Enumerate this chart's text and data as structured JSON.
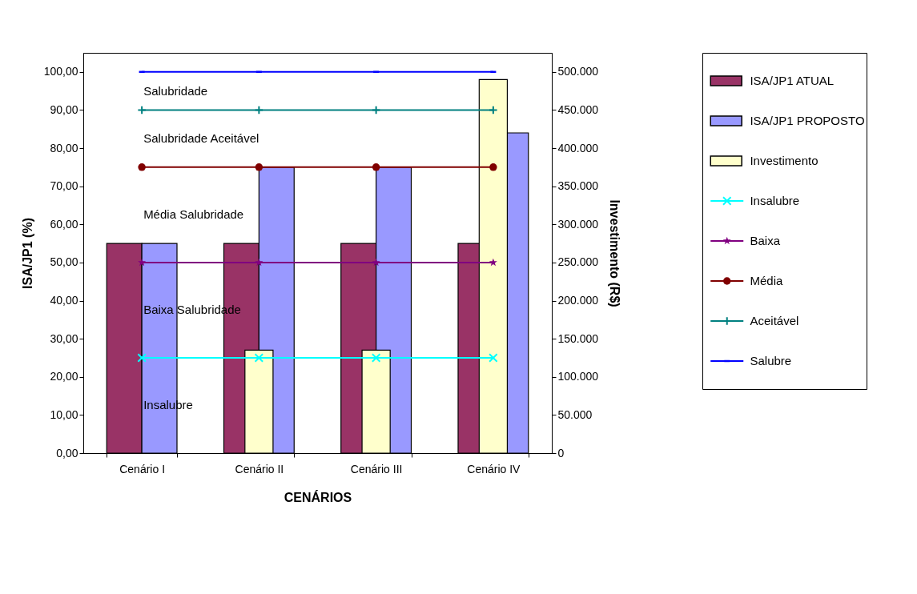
{
  "chart_data": {
    "type": "bar",
    "xlabel": "CENÁRIOS",
    "ylabel": "ISA/JP1 (%)",
    "y2label": "Investimento (R$)",
    "categories": [
      "Cenário I",
      "Cenário II",
      "Cenário III",
      "Cenário IV"
    ],
    "ylim": [
      0,
      105
    ],
    "yticks": [
      {
        "value": 0,
        "label": "0,00"
      },
      {
        "value": 10,
        "label": "10,00"
      },
      {
        "value": 20,
        "label": "20,00"
      },
      {
        "value": 30,
        "label": "30,00"
      },
      {
        "value": 40,
        "label": "40,00"
      },
      {
        "value": 50,
        "label": "50,00"
      },
      {
        "value": 60,
        "label": "60,00"
      },
      {
        "value": 70,
        "label": "70,00"
      },
      {
        "value": 80,
        "label": "80,00"
      },
      {
        "value": 90,
        "label": "90,00"
      },
      {
        "value": 100,
        "label": "100,00"
      }
    ],
    "y2lim": [
      0,
      525000
    ],
    "y2ticks": [
      0,
      {
        "value": 50000,
        "label": "50.000"
      },
      {
        "value": 100000,
        "label": "100.000"
      },
      {
        "value": 150000,
        "label": "150.000"
      },
      {
        "value": 200000,
        "label": "200.000"
      },
      {
        "value": 250000,
        "label": "250.000"
      },
      {
        "value": 300000,
        "label": "300.000"
      },
      {
        "value": 350000,
        "label": "350.000"
      },
      {
        "value": 400000,
        "label": "400.000"
      },
      {
        "value": 450000,
        "label": "450.000"
      },
      {
        "value": 500000,
        "label": "500.000"
      }
    ],
    "series": [
      {
        "name": "ISA/JP1 ATUAL",
        "color": "#993366",
        "values": [
          55,
          55,
          55,
          55
        ]
      },
      {
        "name": "ISA/JP1 PROPOSTO",
        "color": "#9999ff",
        "values": [
          55,
          75,
          75,
          84
        ]
      },
      {
        "name": "Investimento",
        "color": "#ffffcc",
        "axis": "y2",
        "values": [
          null,
          135000,
          135000,
          490000
        ]
      },
      {
        "name": "Insalubre",
        "type": "line",
        "color": "#00ffff",
        "marker": "cross",
        "values": [
          25,
          25,
          25,
          25
        ]
      },
      {
        "name": "Baixa",
        "type": "line",
        "color": "#800080",
        "marker": "star",
        "values": [
          50,
          50,
          50,
          50
        ]
      },
      {
        "name": "Média",
        "type": "line",
        "color": "#800000",
        "marker": "circle",
        "values": [
          75,
          75,
          75,
          75
        ]
      },
      {
        "name": "Aceitável",
        "type": "line",
        "color": "#008080",
        "marker": "plus",
        "values": [
          90,
          90,
          90,
          90
        ]
      },
      {
        "name": "Salubre",
        "type": "line",
        "color": "#0000ff",
        "marker": "square",
        "values": [
          100,
          100,
          100,
          100
        ]
      }
    ],
    "annotations": [
      "Salubridade",
      "Salubridade Aceitável",
      "Média Salubridade",
      "Baixa Salubridade",
      "Insalubre"
    ],
    "grid": false,
    "legend": "right"
  }
}
